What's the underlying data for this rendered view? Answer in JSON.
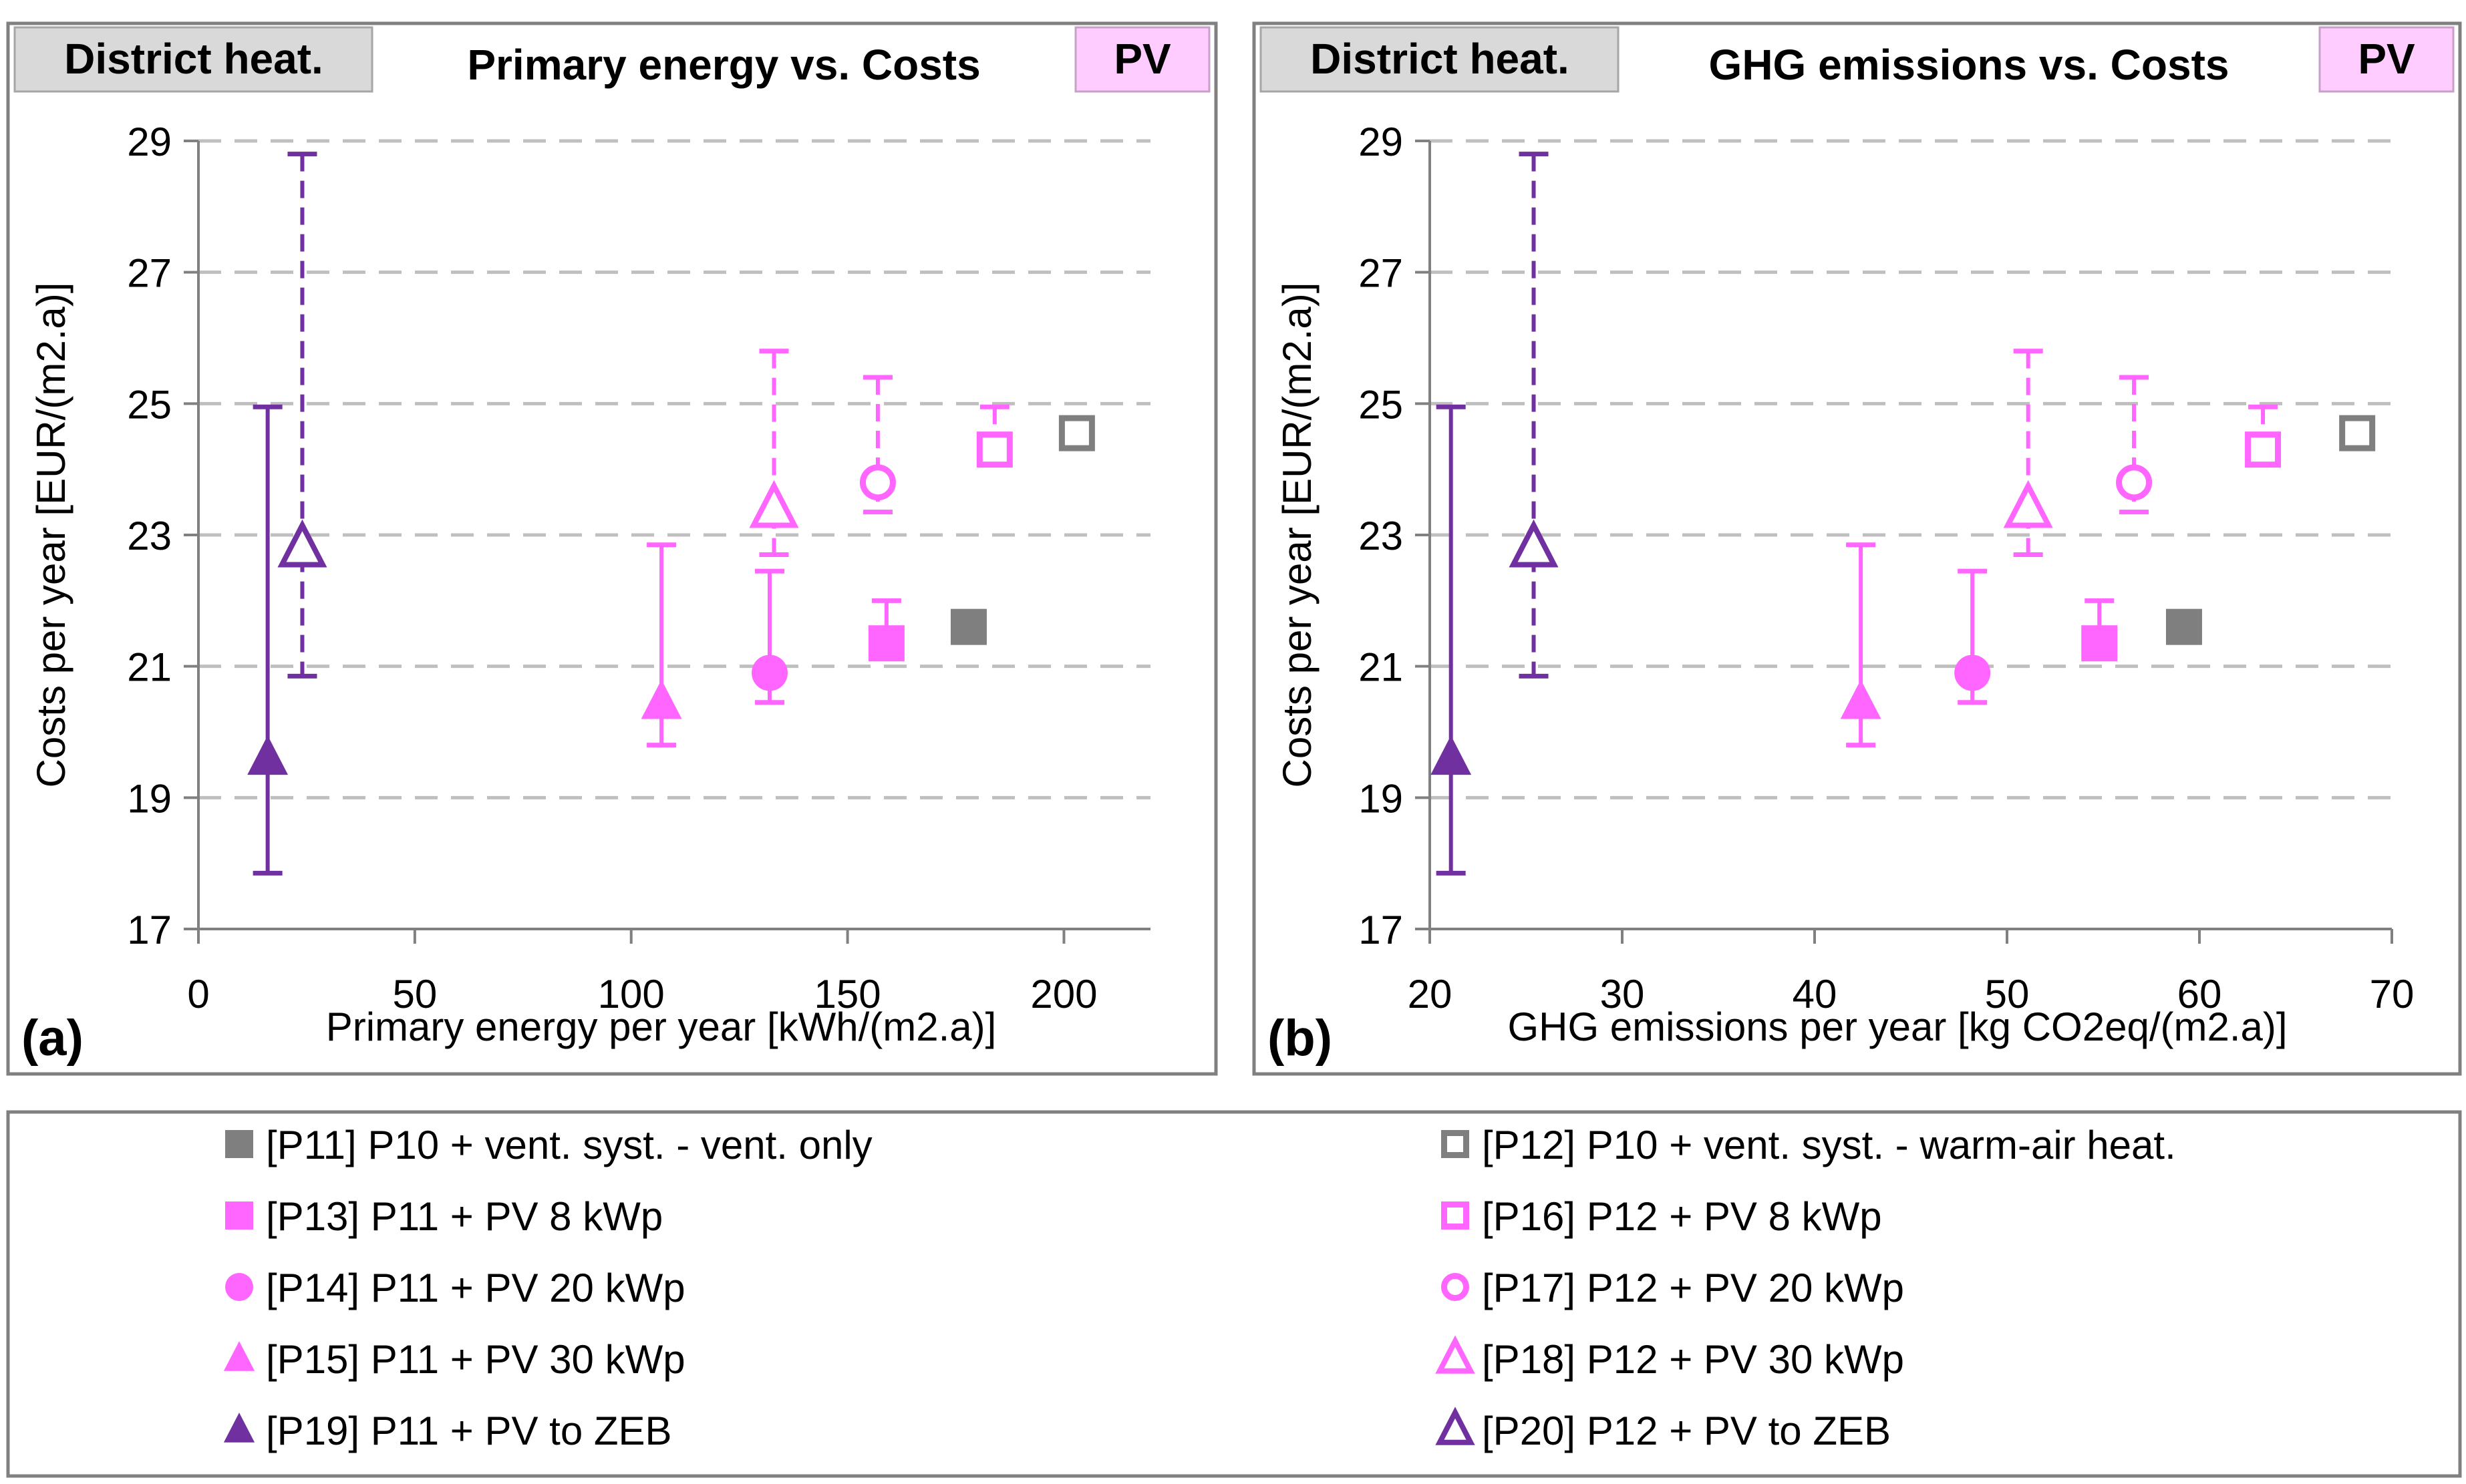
{
  "colors": {
    "gray": "#7f7f7f",
    "pink": "#ff66ff",
    "purple": "#7030a0",
    "badge_gray": "#d9d9d9",
    "badge_pink": "#ffccff",
    "grid": "#bfbfbf",
    "frame": "#808080",
    "axis": "#808080"
  },
  "legend": {
    "items": [
      {
        "id": "P11",
        "label": "[P11] P10 + vent. syst. - vent. only",
        "marker": "square",
        "filled": true,
        "color": "gray"
      },
      {
        "id": "P12",
        "label": "[P12] P10 + vent. syst. - warm-air heat.",
        "marker": "square",
        "filled": false,
        "color": "gray"
      },
      {
        "id": "P13",
        "label": "[P13] P11 + PV  8 kWp",
        "marker": "square",
        "filled": true,
        "color": "pink"
      },
      {
        "id": "P16",
        "label": "[P16] P12 + PV  8 kWp",
        "marker": "square",
        "filled": false,
        "color": "pink"
      },
      {
        "id": "P14",
        "label": "[P14] P11 + PV  20 kWp",
        "marker": "circle",
        "filled": true,
        "color": "pink"
      },
      {
        "id": "P17",
        "label": "[P17] P12 + PV  20 kWp",
        "marker": "circle",
        "filled": false,
        "color": "pink"
      },
      {
        "id": "P15",
        "label": "[P15] P11 + PV  30 kWp",
        "marker": "triangle",
        "filled": true,
        "color": "pink"
      },
      {
        "id": "P18",
        "label": "[P18] P12 + PV  30 kWp",
        "marker": "triangle",
        "filled": false,
        "color": "pink"
      },
      {
        "id": "P19",
        "label": "[P19] P11 + PV to ZEB",
        "marker": "triangle",
        "filled": true,
        "color": "purple"
      },
      {
        "id": "P20",
        "label": "[P20] P12 + PV to ZEB",
        "marker": "triangle",
        "filled": false,
        "color": "purple"
      }
    ]
  },
  "chart_data": [
    {
      "type": "scatter",
      "panel_label": "(a)",
      "title": "Primary energy vs. Costs",
      "badge_left": "District heat.",
      "badge_right": "PV",
      "xlabel": "Primary energy per year  [kWh/(m2.a)]",
      "ylabel": "Costs per year  [EUR/(m2.a)]",
      "xlim": [
        0,
        220
      ],
      "ylim": [
        17,
        29
      ],
      "xticks": [
        0,
        50,
        100,
        150,
        200
      ],
      "yticks": [
        17,
        19,
        21,
        23,
        25,
        27,
        29
      ],
      "grid": "horizontal dashed",
      "points": [
        {
          "id": "P11",
          "x": 178,
          "y": 21.6
        },
        {
          "id": "P12",
          "x": 203,
          "y": 24.55
        },
        {
          "id": "P13",
          "x": 159,
          "y": 21.35,
          "ylow": 21.35,
          "yhigh": 22.0
        },
        {
          "id": "P16",
          "x": 184,
          "y": 24.3,
          "ylow": 24.3,
          "yhigh": 24.95
        },
        {
          "id": "P14",
          "x": 132,
          "y": 20.9,
          "ylow": 20.45,
          "yhigh": 22.45
        },
        {
          "id": "P17",
          "x": 157,
          "y": 23.8,
          "ylow": 23.35,
          "yhigh": 25.4
        },
        {
          "id": "P15",
          "x": 107,
          "y": 20.45,
          "ylow": 19.8,
          "yhigh": 22.85
        },
        {
          "id": "P18",
          "x": 133,
          "y": 23.4,
          "ylow": 22.7,
          "yhigh": 25.8
        },
        {
          "id": "P19",
          "x": 16,
          "y": 19.6,
          "ylow": 17.85,
          "yhigh": 24.95
        },
        {
          "id": "P20",
          "x": 24,
          "y": 22.8,
          "ylow": 20.85,
          "yhigh": 28.8
        }
      ]
    },
    {
      "type": "scatter",
      "panel_label": "(b)",
      "title": "GHG emissions vs. Costs",
      "badge_left": "District heat.",
      "badge_right": "PV",
      "xlabel": "GHG emissions per year  [kg CO2eq/(m2.a)]",
      "ylabel": "Costs per year  [EUR/(m2.a)]",
      "xlim": [
        20,
        70
      ],
      "ylim": [
        17,
        29
      ],
      "xticks": [
        20,
        30,
        40,
        50,
        60,
        70
      ],
      "yticks": [
        17,
        19,
        21,
        23,
        25,
        27,
        29
      ],
      "grid": "horizontal dashed",
      "points": [
        {
          "id": "P11",
          "x": 59.2,
          "y": 21.6
        },
        {
          "id": "P12",
          "x": 68.2,
          "y": 24.55
        },
        {
          "id": "P13",
          "x": 54.8,
          "y": 21.35,
          "ylow": 21.35,
          "yhigh": 22.0
        },
        {
          "id": "P16",
          "x": 63.3,
          "y": 24.3,
          "ylow": 24.3,
          "yhigh": 24.95
        },
        {
          "id": "P14",
          "x": 48.2,
          "y": 20.9,
          "ylow": 20.45,
          "yhigh": 22.45
        },
        {
          "id": "P17",
          "x": 56.6,
          "y": 23.8,
          "ylow": 23.35,
          "yhigh": 25.4
        },
        {
          "id": "P15",
          "x": 42.4,
          "y": 20.45,
          "ylow": 19.8,
          "yhigh": 22.85
        },
        {
          "id": "P18",
          "x": 51.1,
          "y": 23.4,
          "ylow": 22.7,
          "yhigh": 25.8
        },
        {
          "id": "P19",
          "x": 21.1,
          "y": 19.6,
          "ylow": 17.85,
          "yhigh": 24.95
        },
        {
          "id": "P20",
          "x": 25.4,
          "y": 22.8,
          "ylow": 20.85,
          "yhigh": 28.8
        }
      ]
    }
  ]
}
